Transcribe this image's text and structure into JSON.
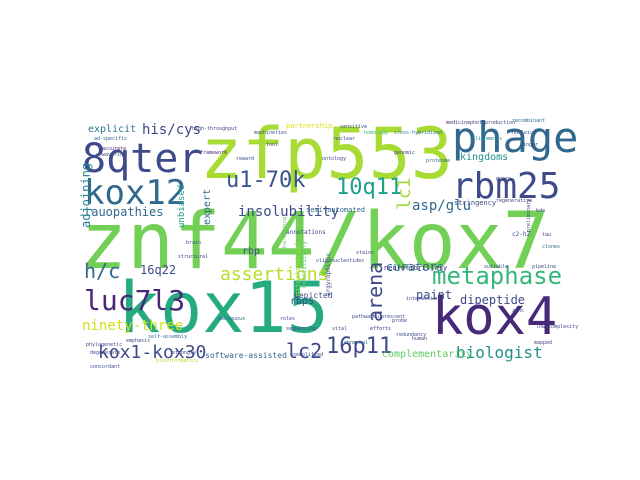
{
  "words": [
    {
      "text": "znf44/kox7",
      "color": "#73d056"
    },
    {
      "text": "kox15",
      "color": "#25ab82"
    },
    {
      "text": "zfp553",
      "color": "#a8db34"
    },
    {
      "text": "kox4",
      "color": "#482878"
    },
    {
      "text": "phage",
      "color": "#31688e"
    },
    {
      "text": "8qter",
      "color": "#3e4a89"
    },
    {
      "text": "rbm25",
      "color": "#3e4a89"
    },
    {
      "text": "kox12",
      "color": "#31688e"
    },
    {
      "text": "luc7l3",
      "color": "#482878"
    },
    {
      "text": "metaphase",
      "color": "#35b779"
    },
    {
      "text": "10q11",
      "color": "#1f9e89"
    },
    {
      "text": "u1-70k",
      "color": "#39568c"
    },
    {
      "text": "16p11",
      "color": "#3e4a89"
    },
    {
      "text": "lc2",
      "color": "#3e4a89"
    },
    {
      "text": "kox1-kox30",
      "color": "#3e4a89"
    },
    {
      "text": "assertions",
      "color": "#b5de2b"
    },
    {
      "text": "h/c",
      "color": "#31688e"
    },
    {
      "text": "biologist",
      "color": "#21918c"
    },
    {
      "text": "arena",
      "color": "#3e4a89"
    },
    {
      "text": "lc1",
      "color": "#a0da39"
    },
    {
      "text": "insolubility",
      "color": "#3e4a89"
    },
    {
      "text": "asp/glu",
      "color": "#31688e"
    },
    {
      "text": "his/cys",
      "color": "#3e4a89"
    },
    {
      "text": "ninety-three",
      "color": "#d0e11c"
    },
    {
      "text": "curators",
      "color": "#2a788e"
    },
    {
      "text": "paint",
      "color": "#3e4a89"
    },
    {
      "text": "dipeptide",
      "color": "#3e4a89"
    },
    {
      "text": "complementarity",
      "color": "#5ec962"
    },
    {
      "text": "16q22",
      "color": "#3e4a89"
    },
    {
      "text": "tauopathies",
      "color": "#31688e"
    },
    {
      "text": "kingdoms",
      "color": "#21918c"
    },
    {
      "text": "explicit",
      "color": "#2a788e"
    },
    {
      "text": "adjoining",
      "color": "#26828e"
    },
    {
      "text": "rbp",
      "color": "#3e4a89"
    },
    {
      "text": "rbps",
      "color": "#3e4a89"
    },
    {
      "text": "expert",
      "color": "#31688e"
    },
    {
      "text": "neurofibrillary",
      "color": "#482878"
    },
    {
      "text": "software-assisted",
      "color": "#31688e"
    },
    {
      "text": "stringency",
      "color": "#3e4a89"
    },
    {
      "text": "depicted",
      "color": "#3e4a89"
    },
    {
      "text": "semi-automated",
      "color": "#31688e"
    },
    {
      "text": "unbiased",
      "color": "#1f9e89"
    },
    {
      "text": "mitochondrial",
      "color": "#9fda3a"
    },
    {
      "text": "partnership",
      "color": "#d8e219"
    },
    {
      "text": "homology",
      "color": "#35b779"
    },
    {
      "text": "cross-hybridized",
      "color": "#2a788e"
    },
    {
      "text": "photoproduction",
      "color": "#3e4a89"
    },
    {
      "text": "medicine",
      "color": "#482878"
    },
    {
      "text": "recombinant",
      "color": "#31688e"
    },
    {
      "text": "annotations",
      "color": "#3e4a89"
    },
    {
      "text": "machineries",
      "color": "#3e4a89"
    },
    {
      "text": "heuristically",
      "color": "#5ec962"
    },
    {
      "text": "regenerative",
      "color": "#3e4a89"
    },
    {
      "text": "sequencing",
      "color": "#3e4a89"
    },
    {
      "text": "alignments",
      "color": "#26828e"
    },
    {
      "text": "dna-binding",
      "color": "#5ec962"
    },
    {
      "text": "ontology",
      "color": "#3e4a89"
    },
    {
      "text": "framework",
      "color": "#482878"
    },
    {
      "text": "proteome",
      "color": "#31688e"
    },
    {
      "text": "nucleic",
      "color": "#3e4a89"
    },
    {
      "text": "genomic",
      "color": "#3e4a89"
    },
    {
      "text": "accurate",
      "color": "#482878"
    },
    {
      "text": "ad-specific",
      "color": "#31688e"
    },
    {
      "text": "unwavering",
      "color": "#3e4a89"
    },
    {
      "text": "high-throughput",
      "color": "#3e4a89"
    },
    {
      "text": "self-assembly",
      "color": "#31688e"
    },
    {
      "text": "fluorescent",
      "color": "#3e4a89"
    },
    {
      "text": "structural",
      "color": "#3e4a89"
    },
    {
      "text": "sensitive",
      "color": "#3e4a89"
    },
    {
      "text": "bioinformatics",
      "color": "#b5de2b"
    },
    {
      "text": "pipeline",
      "color": "#3e4a89"
    },
    {
      "text": "preliminary",
      "color": "#3e4a89"
    },
    {
      "text": "clones",
      "color": "#31688e"
    },
    {
      "text": "suitable",
      "color": "#3e4a89"
    },
    {
      "text": "low-complexity",
      "color": "#3e4a89"
    },
    {
      "text": "interaction",
      "color": "#3e4a89"
    },
    {
      "text": "exemplified",
      "color": "#3e4a89"
    },
    {
      "text": "probe",
      "color": "#3e4a89"
    },
    {
      "text": "efforts",
      "color": "#482878"
    },
    {
      "text": "redundancy",
      "color": "#3e4a89"
    },
    {
      "text": "ambiguous",
      "color": "#31688e"
    },
    {
      "text": "oligonucleotides",
      "color": "#3e4a89"
    },
    {
      "text": "vital",
      "color": "#3e4a89"
    },
    {
      "text": "abnormal",
      "color": "#31688e"
    },
    {
      "text": "concordant",
      "color": "#3e4a89"
    },
    {
      "text": "argyrophilic",
      "color": "#3e4a89"
    },
    {
      "text": "pathways",
      "color": "#3e4a89"
    },
    {
      "text": "emphasis",
      "color": "#3e4a89"
    },
    {
      "text": "phylogenetic",
      "color": "#3e4a89"
    },
    {
      "text": "degenerate",
      "color": "#3e4a89"
    },
    {
      "text": "stains",
      "color": "#3e4a89"
    },
    {
      "text": "strongly",
      "color": "#3e4a89"
    },
    {
      "text": "tau",
      "color": "#3e4a89"
    },
    {
      "text": "zinc",
      "color": "#3e4a89"
    },
    {
      "text": "finger",
      "color": "#3e4a89"
    },
    {
      "text": "c2-h2",
      "color": "#3e4a89"
    },
    {
      "text": "reward",
      "color": "#3e4a89"
    },
    {
      "text": "mapped",
      "color": "#3e4a89"
    },
    {
      "text": "tool",
      "color": "#3e4a89"
    },
    {
      "text": "genes",
      "color": "#3e4a89"
    },
    {
      "text": "kda",
      "color": "#3e4a89"
    },
    {
      "text": "brain",
      "color": "#3e4a89"
    },
    {
      "text": "human",
      "color": "#3e4a89"
    },
    {
      "text": "nuclear",
      "color": "#3e4a89"
    },
    {
      "text": "roles",
      "color": "#3e4a89"
    }
  ]
}
